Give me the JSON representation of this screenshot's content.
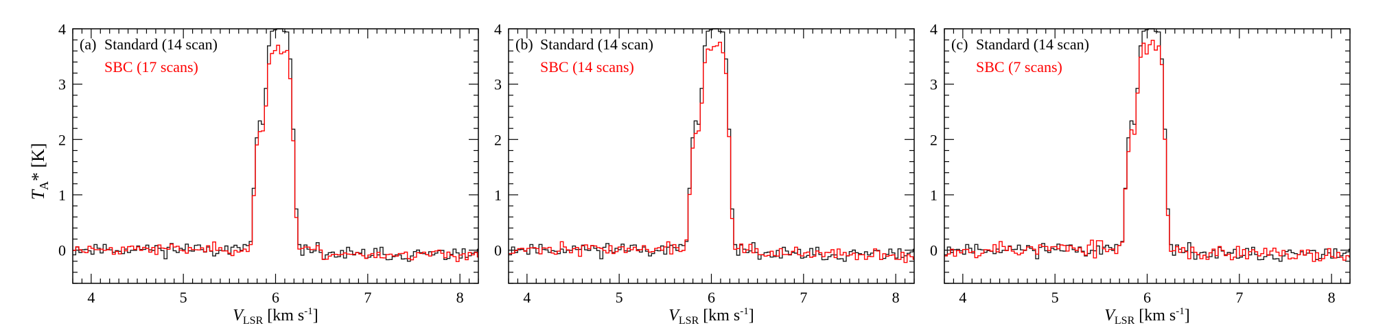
{
  "y_axis_title": {
    "main": "T",
    "sub": "A",
    "rest": "* [K]"
  },
  "x_axis_title": {
    "main": "V",
    "sub": "LSR",
    "rest": " [km s",
    "sup": "-1",
    "close": "]"
  },
  "colors": {
    "standard": "#1a1a1a",
    "sbc": "#ff0000",
    "axes": "#000000"
  },
  "chart_data": [
    {
      "type": "line",
      "step": true,
      "panel_label": "(a)",
      "legend": [
        "Standard (14 scan)",
        "SBC (17 scans)"
      ],
      "xlim": [
        3.8,
        8.2
      ],
      "ylim": [
        -0.6,
        4.0
      ],
      "xticks": [
        4,
        5,
        6,
        7,
        8
      ],
      "yticks": [
        0,
        1,
        2,
        3,
        4
      ],
      "series": [
        {
          "name": "Standard (14 scan)",
          "color": "#1a1a1a",
          "peak": 3.95,
          "noise": 0.11,
          "seed": 11
        },
        {
          "name": "SBC (17 scans)",
          "color": "#ff0000",
          "peak": 3.6,
          "noise": 0.09,
          "seed": 23
        }
      ]
    },
    {
      "type": "line",
      "step": true,
      "panel_label": "(b)",
      "legend": [
        "Standard (14 scan)",
        "SBC (14 scans)"
      ],
      "xlim": [
        3.8,
        8.2
      ],
      "ylim": [
        -0.6,
        4.0
      ],
      "xticks": [
        4,
        5,
        6,
        7,
        8
      ],
      "yticks": [
        0,
        1,
        2,
        3,
        4
      ],
      "series": [
        {
          "name": "Standard (14 scan)",
          "color": "#1a1a1a",
          "peak": 3.95,
          "noise": 0.11,
          "seed": 11
        },
        {
          "name": "SBC (14 scans)",
          "color": "#ff0000",
          "peak": 3.65,
          "noise": 0.1,
          "seed": 37
        }
      ]
    },
    {
      "type": "line",
      "step": true,
      "panel_label": "(c)",
      "legend": [
        "Standard (14 scan)",
        "SBC (7 scans)"
      ],
      "xlim": [
        3.8,
        8.2
      ],
      "ylim": [
        -0.6,
        4.0
      ],
      "xticks": [
        4,
        5,
        6,
        7,
        8
      ],
      "yticks": [
        0,
        1,
        2,
        3,
        4
      ],
      "series": [
        {
          "name": "Standard (14 scan)",
          "color": "#1a1a1a",
          "peak": 3.95,
          "noise": 0.11,
          "seed": 11
        },
        {
          "name": "SBC (7 scans)",
          "color": "#ff0000",
          "peak": 3.7,
          "noise": 0.15,
          "seed": 53
        }
      ]
    }
  ]
}
